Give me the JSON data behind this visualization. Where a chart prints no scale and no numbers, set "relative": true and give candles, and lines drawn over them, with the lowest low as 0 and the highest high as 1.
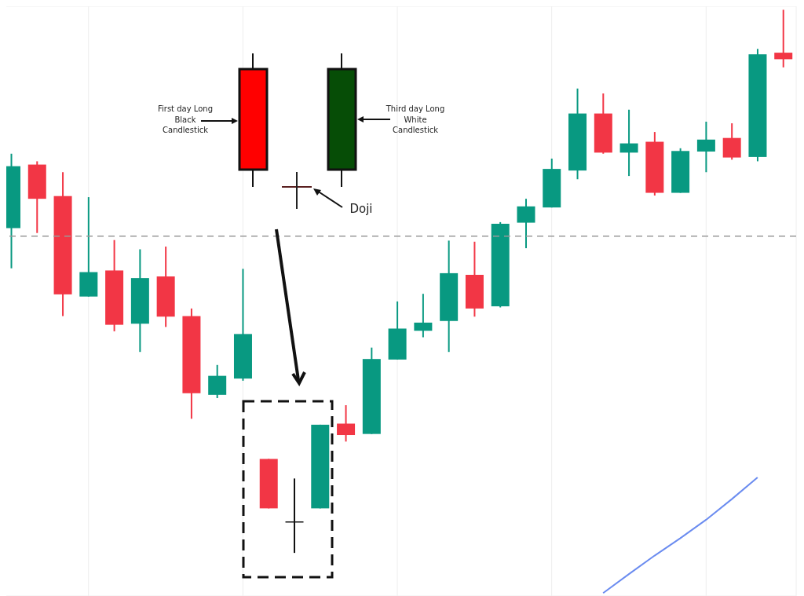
{
  "chart_data": {
    "type": "candlestick",
    "relative": true,
    "categories": [
      null,
      null,
      null,
      null,
      null,
      null,
      null,
      null,
      null,
      null,
      null,
      null,
      null,
      null,
      null,
      null,
      null,
      null,
      null,
      null,
      null,
      null,
      null,
      null,
      null,
      null,
      null,
      null,
      null,
      null,
      null
    ],
    "ohlc": [
      [
        0.598,
        0.735,
        0.524,
        0.712
      ],
      [
        0.715,
        0.721,
        0.589,
        0.652
      ],
      [
        0.657,
        0.701,
        0.436,
        0.476
      ],
      [
        0.472,
        0.655,
        0.472,
        0.517
      ],
      [
        0.52,
        0.576,
        0.408,
        0.42
      ],
      [
        0.422,
        0.559,
        0.37,
        0.506
      ],
      [
        0.509,
        0.564,
        0.416,
        0.435
      ],
      [
        0.436,
        0.45,
        0.247,
        0.294
      ],
      [
        0.291,
        0.346,
        0.285,
        0.326
      ],
      [
        0.321,
        0.523,
        0.317,
        0.403
      ],
      [
        0.173,
        0.173,
        0.082,
        0.082
      ],
      [
        0.058,
        0.137,
        0,
        0.058
      ],
      [
        0.082,
        0.236,
        0.082,
        0.236
      ],
      [
        0.238,
        0.272,
        0.205,
        0.217
      ],
      [
        0.219,
        0.378,
        0.219,
        0.357
      ],
      [
        0.356,
        0.463,
        0.356,
        0.413
      ],
      [
        0.409,
        0.477,
        0.397,
        0.424
      ],
      [
        0.427,
        0.575,
        0.37,
        0.515
      ],
      [
        0.512,
        0.573,
        0.435,
        0.45
      ],
      [
        0.454,
        0.609,
        0.452,
        0.606
      ],
      [
        0.608,
        0.652,
        0.561,
        0.638
      ],
      [
        0.636,
        0.726,
        0.636,
        0.707
      ],
      [
        0.704,
        0.855,
        0.688,
        0.809
      ],
      [
        0.809,
        0.846,
        0.735,
        0.737
      ],
      [
        0.737,
        0.816,
        0.694,
        0.754
      ],
      [
        0.757,
        0.775,
        0.658,
        0.663
      ],
      [
        0.663,
        0.745,
        0.663,
        0.74
      ],
      [
        0.739,
        0.794,
        0.701,
        0.761
      ],
      [
        0.764,
        0.791,
        0.724,
        0.728
      ],
      [
        0.729,
        0.928,
        0.721,
        0.918
      ],
      [
        0.921,
        1,
        0.894,
        0.909
      ]
    ],
    "colors": [
      "#089981",
      "#f23645",
      "#f23645",
      "#089981",
      "#f23645",
      "#089981",
      "#f23645",
      "#f23645",
      "#089981",
      "#089981",
      "#f23645",
      "#111111",
      "#089981",
      "#f23645",
      "#089981",
      "#089981",
      "#089981",
      "#089981",
      "#f23645",
      "#089981",
      "#089981",
      "#089981",
      "#089981",
      "#f23645",
      "#089981",
      "#f23645",
      "#089981",
      "#089981",
      "#f23645",
      "#089981",
      "#f23645"
    ],
    "series": [
      {
        "type": "line",
        "color": "#6b8cf0",
        "values": [
          null,
          null,
          null,
          null,
          null,
          null,
          null,
          null,
          null,
          null,
          null,
          null,
          null,
          null,
          null,
          null,
          null,
          null,
          null,
          null,
          null,
          null,
          null,
          -0.074,
          -0.039,
          -0.005,
          0.027,
          0.061,
          0.099,
          0.139,
          null
        ]
      }
    ],
    "ref_lines": [
      {
        "axis": "y",
        "value": 0.583,
        "color": "#999999",
        "line_style": "dashed"
      }
    ],
    "annotations": [
      "First day Long Black Candlestick",
      "Third day Long White Candlestick",
      "Doji"
    ],
    "grid": true,
    "legend": false
  }
}
